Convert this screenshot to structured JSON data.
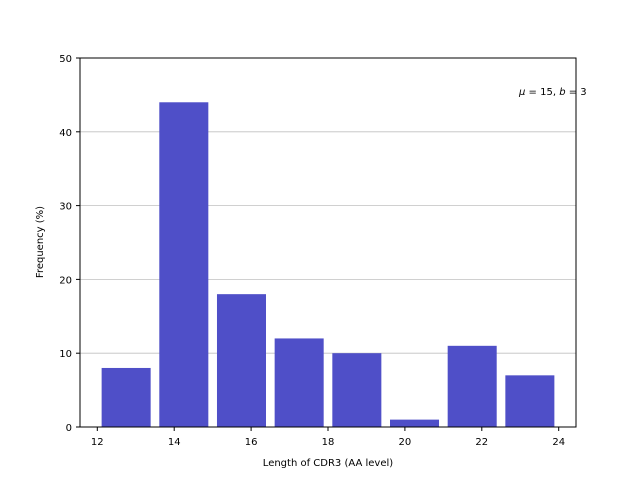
{
  "chart_data": {
    "type": "bar",
    "x": [
      12.75,
      14.25,
      15.75,
      17.25,
      18.75,
      20.25,
      21.75,
      23.25
    ],
    "values": [
      8,
      44,
      18,
      12,
      10,
      1,
      11,
      7
    ],
    "bar_color": "#4f4fc8",
    "grid_color": "#c0c0c0",
    "xlabel": "Length of CDR3 (AA level)",
    "ylabel": "Frequency (%)",
    "xlim": [
      11.55,
      24.45
    ],
    "ylim": [
      0,
      50
    ],
    "xticks": [
      12,
      14,
      16,
      18,
      20,
      22,
      24
    ],
    "yticks": [
      0,
      10,
      20,
      30,
      40,
      50
    ],
    "grid": "horizontal",
    "annotation": {
      "mu_symbol": "μ",
      "mu_value": " = 15, ",
      "b_symbol": "b",
      "b_value": " = 3"
    }
  }
}
